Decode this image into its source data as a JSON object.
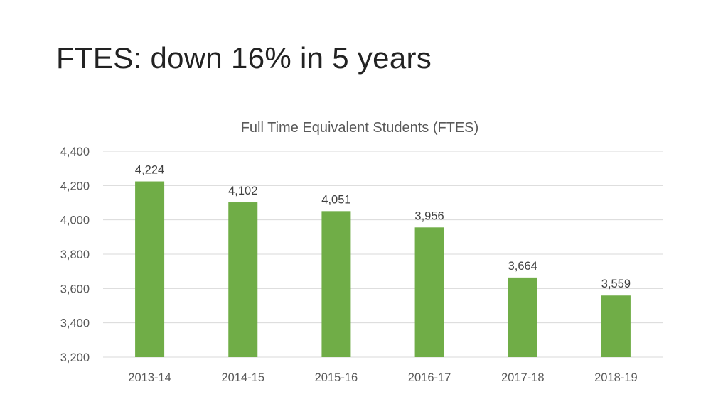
{
  "slide": {
    "title": "FTES:  down 16% in 5 years"
  },
  "chart_data": {
    "type": "bar",
    "title": "Full Time Equivalent Students (FTES)",
    "xlabel": "",
    "ylabel": "",
    "categories": [
      "2013-14",
      "2014-15",
      "2015-16",
      "2016-17",
      "2017-18",
      "2018-19"
    ],
    "values": [
      4224,
      4102,
      4051,
      3956,
      3664,
      3559
    ],
    "data_labels": [
      "4,224",
      "4,102",
      "4,051",
      "3,956",
      "3,664",
      "3,559"
    ],
    "ylim": [
      3200,
      4400
    ],
    "yticks": [
      3200,
      3400,
      3600,
      3800,
      4000,
      4200,
      4400
    ],
    "ytick_labels": [
      "3,200",
      "3,400",
      "3,600",
      "3,800",
      "4,000",
      "4,200",
      "4,400"
    ],
    "grid": true,
    "legend": "none",
    "bar_color": "#70ad47"
  }
}
